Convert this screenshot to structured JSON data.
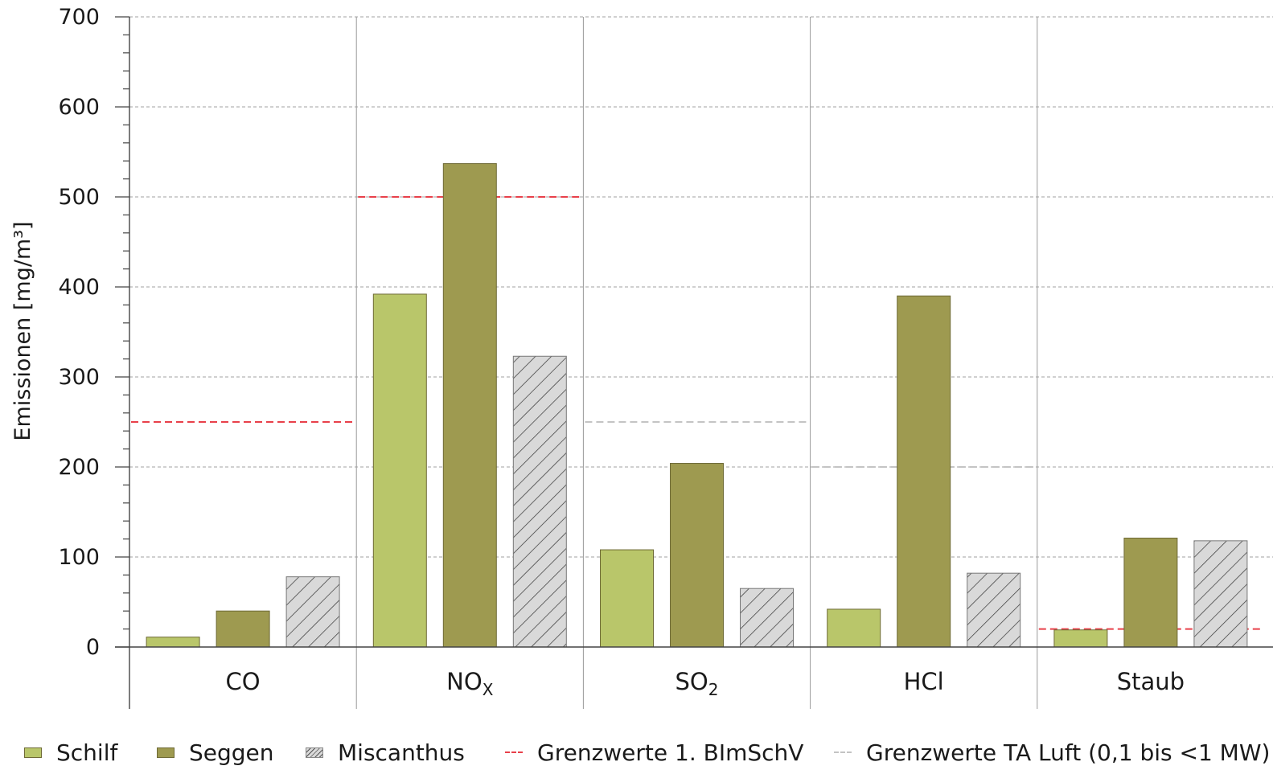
{
  "chart_data": {
    "type": "bar",
    "title": "",
    "xlabel": "",
    "ylabel": "Emissionen [mg/m³]",
    "ylim": [
      0,
      700
    ],
    "yticks": [
      0,
      100,
      200,
      300,
      400,
      500,
      600,
      700
    ],
    "categories": [
      {
        "base": "CO",
        "sub": ""
      },
      {
        "base": "NO",
        "sub": "X"
      },
      {
        "base": "SO",
        "sub": "2"
      },
      {
        "base": "HCl",
        "sub": ""
      },
      {
        "base": "Staub",
        "sub": ""
      }
    ],
    "series": [
      {
        "name": "Schilf",
        "values": [
          11,
          392,
          108,
          42,
          19
        ],
        "color": "#b9c66a",
        "pattern": "solid"
      },
      {
        "name": "Seggen",
        "values": [
          40,
          537,
          204,
          390,
          121
        ],
        "color": "#9e9a50",
        "pattern": "solid"
      },
      {
        "name": "Miscanthus",
        "values": [
          78,
          323,
          65,
          82,
          118
        ],
        "color": "#d9d9d9",
        "pattern": "hatch"
      }
    ],
    "limits": [
      {
        "name": "Grenzwerte 1. BImSchV",
        "color": "#e8404a",
        "values": [
          250,
          500,
          null,
          null,
          20
        ]
      },
      {
        "name": "Grenzwerte TA Luft (0,1 bis <1 MW)",
        "color": "#c4c4c4",
        "values": [
          null,
          null,
          250,
          200,
          null
        ]
      }
    ],
    "grid": true,
    "legend_position": "bottom"
  }
}
